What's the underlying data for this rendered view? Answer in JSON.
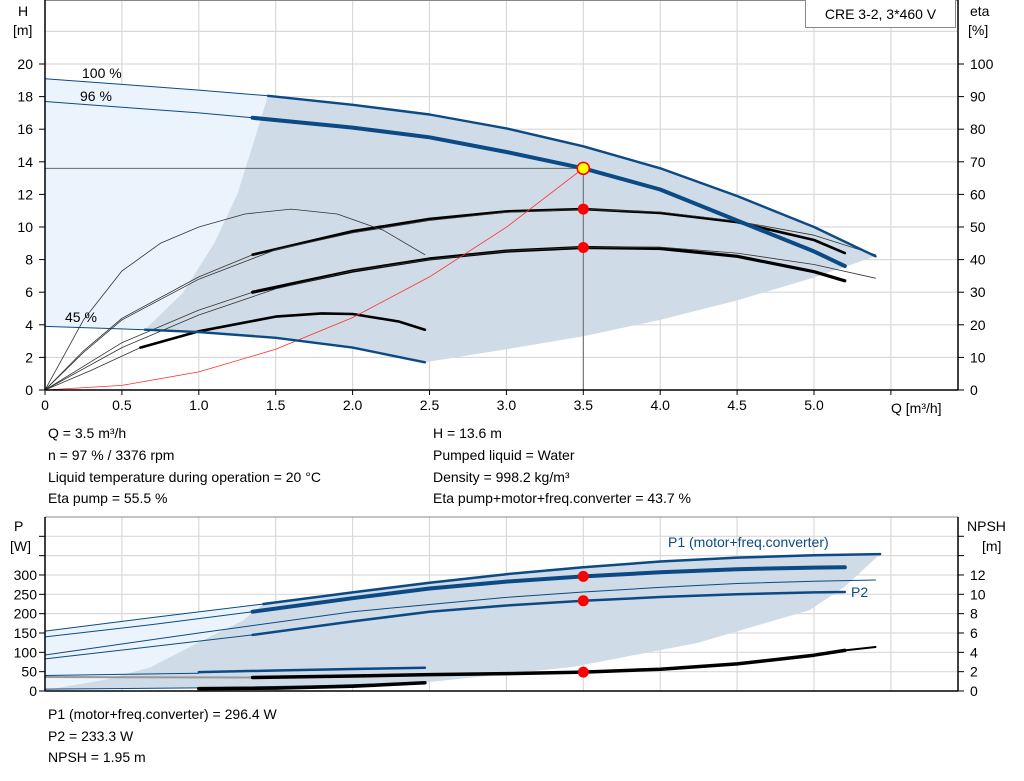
{
  "chart_data": [
    {
      "type": "line",
      "title": "CRE 3-2, 3*460 V",
      "xlabel": "Q [m³/h]",
      "ylabel_left": {
        "name": "H",
        "unit": "[m]"
      },
      "ylabel_right": {
        "name": "eta",
        "unit": "[%]"
      },
      "xlim": [
        0,
        5.5
      ],
      "ylim_left": [
        0,
        22
      ],
      "ylim_right": [
        0,
        110
      ],
      "x_ticks": [
        "0",
        "0.5",
        "1.0",
        "1.5",
        "2.0",
        "2.5",
        "3.0",
        "3.5",
        "4.0",
        "4.5",
        "5.0"
      ],
      "y_ticks_left": [
        "0",
        "2",
        "4",
        "6",
        "8",
        "10",
        "12",
        "14",
        "16",
        "18",
        "20"
      ],
      "y_ticks_right": [
        "0",
        "10",
        "20",
        "30",
        "40",
        "50",
        "60",
        "70",
        "80",
        "90",
        "100"
      ],
      "grid": true,
      "colors": {
        "head": "#0b4a85",
        "eta": "#000000",
        "system": "#ff3030",
        "region_light": "#ebf4fd",
        "region_dark": "#cfdbe6",
        "point": "#ff0000",
        "duty_point": "#ffff00"
      },
      "head_curves": [
        {
          "label": "100 %",
          "thin": [
            [
              0,
              19.1
            ],
            [
              0.5,
              18.75
            ],
            [
              1.0,
              18.4
            ],
            [
              1.45,
              18.05
            ]
          ],
          "thick": [
            [
              1.45,
              18.05
            ],
            [
              2.0,
              17.5
            ],
            [
              2.5,
              16.9
            ],
            [
              3.0,
              16.05
            ],
            [
              3.5,
              14.95
            ],
            [
              4.0,
              13.6
            ],
            [
              4.5,
              11.9
            ],
            [
              5.0,
              10.0
            ],
            [
              5.4,
              8.2
            ]
          ]
        },
        {
          "label": "96 %",
          "thin": [
            [
              0,
              17.7
            ],
            [
              0.5,
              17.35
            ],
            [
              1.0,
              17.0
            ],
            [
              1.35,
              16.7
            ]
          ],
          "thick": [
            [
              1.35,
              16.7
            ],
            [
              2.0,
              16.1
            ],
            [
              2.5,
              15.5
            ],
            [
              3.0,
              14.6
            ],
            [
              3.5,
              13.6
            ],
            [
              4.0,
              12.3
            ],
            [
              4.5,
              10.4
            ],
            [
              5.0,
              8.5
            ],
            [
              5.2,
              7.6
            ]
          ]
        },
        {
          "label": "45 %",
          "thin": [
            [
              0,
              3.9
            ],
            [
              0.65,
              3.7
            ]
          ],
          "thick": [
            [
              0.65,
              3.7
            ],
            [
              1.0,
              3.55
            ],
            [
              1.5,
              3.2
            ],
            [
              2.0,
              2.6
            ],
            [
              2.47,
              1.7
            ]
          ]
        }
      ],
      "eta_curves": [
        {
          "thin": [
            [
              0,
              0
            ],
            [
              0.25,
              12
            ],
            [
              0.5,
              22
            ],
            [
              1.0,
              34.7
            ],
            [
              1.35,
              41.5
            ]
          ],
          "thick": [
            [
              1.35,
              41.5
            ],
            [
              2.0,
              48.7
            ],
            [
              2.5,
              52.5
            ],
            [
              3.0,
              54.8
            ],
            [
              3.5,
              55.5
            ],
            [
              4.0,
              54.3
            ],
            [
              4.5,
              51.5
            ],
            [
              5.0,
              46
            ],
            [
              5.2,
              42
            ]
          ]
        },
        {
          "thin": [
            [
              0,
              0
            ],
            [
              0.25,
              11.5
            ],
            [
              0.5,
              21.5
            ],
            [
              1.0,
              34
            ],
            [
              1.5,
              43
            ],
            [
              2.0,
              48.2
            ],
            [
              2.5,
              52
            ],
            [
              3.0,
              54.5
            ],
            [
              3.5,
              55.4
            ],
            [
              4.0,
              54.6
            ],
            [
              4.5,
              51.8
            ],
            [
              5.0,
              47.5
            ],
            [
              5.4,
              41.5
            ]
          ],
          "thick": []
        },
        {
          "thin": [
            [
              0,
              0
            ],
            [
              0.5,
              14.5
            ],
            [
              1.0,
              24.5
            ],
            [
              1.35,
              30
            ]
          ],
          "thick": [
            [
              1.35,
              30
            ],
            [
              2.0,
              36.5
            ],
            [
              2.5,
              40.2
            ],
            [
              3.0,
              42.6
            ],
            [
              3.5,
              43.7
            ],
            [
              4.0,
              43.4
            ],
            [
              4.5,
              41
            ],
            [
              5.0,
              36.3
            ],
            [
              5.2,
              33.5
            ]
          ]
        },
        {
          "thin": [
            [
              0,
              0
            ],
            [
              0.5,
              13
            ],
            [
              1.0,
              23
            ],
            [
              1.5,
              31
            ],
            [
              2.0,
              36.5
            ],
            [
              2.5,
              40
            ],
            [
              3.0,
              42.6
            ],
            [
              3.5,
              43.8
            ],
            [
              4.0,
              43.8
            ],
            [
              4.5,
              42
            ],
            [
              5.0,
              38.5
            ],
            [
              5.4,
              34.3
            ]
          ],
          "thick": []
        },
        {
          "thin": [
            [
              0,
              0
            ],
            [
              0.3,
              6
            ],
            [
              0.62,
              13
            ]
          ],
          "thick": [
            [
              0.62,
              13
            ],
            [
              1.0,
              18
            ],
            [
              1.5,
              22.5
            ],
            [
              1.8,
              23.5
            ],
            [
              2.0,
              23.3
            ],
            [
              2.3,
              21
            ],
            [
              2.47,
              18.5
            ]
          ]
        },
        {
          "thin": [
            [
              0,
              0
            ],
            [
              0.25,
              21.5
            ],
            [
              0.5,
              36.5
            ],
            [
              0.75,
              45
            ],
            [
              1.0,
              50
            ],
            [
              1.3,
              54
            ],
            [
              1.6,
              55.5
            ],
            [
              1.9,
              54
            ],
            [
              2.2,
              49
            ],
            [
              2.47,
              41.5
            ]
          ],
          "thick": []
        }
      ],
      "system_curve": [
        [
          0,
          0
        ],
        [
          0.5,
          0.28
        ],
        [
          1.0,
          1.11
        ],
        [
          1.5,
          2.5
        ],
        [
          2.0,
          4.44
        ],
        [
          2.5,
          6.94
        ],
        [
          3.0,
          9.99
        ],
        [
          3.5,
          13.6
        ]
      ],
      "operating_region": {
        "left_boundary": [
          [
            0.65,
            3.7
          ],
          [
            0.9,
            6
          ],
          [
            1.1,
            9
          ],
          [
            1.25,
            12
          ],
          [
            1.35,
            15
          ],
          [
            1.45,
            18.05
          ]
        ],
        "lower_boundary": [
          [
            5.4,
            8.2
          ],
          [
            5.0,
            6.9
          ],
          [
            4.5,
            5.5
          ],
          [
            4.0,
            4.3
          ],
          [
            3.5,
            3.3
          ],
          [
            3.0,
            2.5
          ],
          [
            2.47,
            1.7
          ]
        ]
      },
      "duty_point": {
        "Q": 3.5,
        "H": 13.6
      },
      "eta_points": [
        55.5,
        43.7
      ]
    },
    {
      "type": "line",
      "ylabel_left": {
        "name": "P",
        "unit": "[W]"
      },
      "ylabel_right": {
        "name": "NPSH",
        "unit": "[m]"
      },
      "xlim": [
        0,
        5.5
      ],
      "ylim_left": [
        0,
        450
      ],
      "ylim_right": [
        0,
        18
      ],
      "y_ticks_left": [
        "0",
        "50",
        "100",
        "150",
        "200",
        "250",
        "300"
      ],
      "y_ticks_right": [
        "0",
        "2",
        "4",
        "6",
        "8",
        "10",
        "12"
      ],
      "grid": true,
      "series_labels": {
        "p1": "P1 (motor+freq.converter)",
        "p2": "P2"
      },
      "power_curves": [
        {
          "thin": [
            [
              0,
              155
            ],
            [
              0.7,
              190
            ],
            [
              1.42,
              225
            ]
          ],
          "thick": [
            [
              1.42,
              225
            ],
            [
              2.0,
              255
            ],
            [
              2.5,
              280
            ],
            [
              3.0,
              302
            ],
            [
              3.5,
              320
            ],
            [
              4.0,
              335
            ],
            [
              4.5,
              345
            ],
            [
              5.0,
              351
            ],
            [
              5.43,
              354
            ]
          ],
          "weight": 2.5
        },
        {
          "thin": [
            [
              0,
              140
            ],
            [
              0.7,
              172
            ],
            [
              1.35,
              205
            ]
          ],
          "thick": [
            [
              1.35,
              205
            ],
            [
              2.0,
              240
            ],
            [
              2.5,
              265
            ],
            [
              3.0,
              283
            ],
            [
              3.5,
              296.4
            ],
            [
              4.0,
              307
            ],
            [
              4.5,
              315
            ],
            [
              5.0,
              319
            ],
            [
              5.2,
              320
            ]
          ],
          "weight": 4
        },
        {
          "thin": [
            [
              0,
              93
            ],
            [
              1.0,
              150
            ],
            [
              2.0,
              205
            ],
            [
              3.0,
              242
            ],
            [
              3.5,
              256
            ],
            [
              4.0,
              268
            ],
            [
              4.5,
              278
            ],
            [
              5.0,
              284
            ],
            [
              5.4,
              287
            ]
          ],
          "thick": [],
          "weight": 1
        },
        {
          "thin": [
            [
              0,
              83
            ],
            [
              0.7,
              115
            ],
            [
              1.35,
              145
            ]
          ],
          "thick": [
            [
              1.35,
              145
            ],
            [
              2.0,
              180
            ],
            [
              2.5,
              205
            ],
            [
              3.0,
              221
            ],
            [
              3.5,
              233.3
            ],
            [
              4.0,
              243
            ],
            [
              4.5,
              250
            ],
            [
              5.0,
              255
            ],
            [
              5.2,
              256
            ]
          ],
          "weight": 2.5
        },
        {
          "thin": [
            [
              0,
              40
            ],
            [
              1.0,
              46
            ]
          ],
          "thick": [
            [
              1.0,
              49
            ],
            [
              1.5,
              53
            ],
            [
              2.0,
              57
            ],
            [
              2.47,
              60
            ]
          ],
          "weight": 2.5
        },
        {
          "thin": [
            [
              0,
              5
            ],
            [
              1.0,
              8
            ],
            [
              1.8,
              14
            ],
            [
              2.47,
              22
            ]
          ],
          "thick": [],
          "weight": 1
        }
      ],
      "npsh_curves": [
        {
          "thin": [
            [
              0,
              1.45
            ],
            [
              1.35,
              1.4
            ]
          ],
          "thick": [
            [
              1.35,
              1.4
            ],
            [
              2.0,
              1.55
            ],
            [
              2.5,
              1.7
            ],
            [
              3.0,
              1.8
            ],
            [
              3.5,
              1.95
            ],
            [
              4.0,
              2.25
            ],
            [
              4.5,
              2.8
            ],
            [
              5.0,
              3.7
            ],
            [
              5.2,
              4.2
            ]
          ],
          "tail": [
            [
              5.2,
              4.2
            ],
            [
              5.4,
              4.55
            ]
          ]
        },
        {
          "thin": [],
          "thick": [
            [
              1.0,
              0.25
            ],
            [
              1.5,
              0.3
            ],
            [
              2.0,
              0.5
            ],
            [
              2.47,
              0.85
            ]
          ],
          "tail": []
        }
      ],
      "operating_region": {
        "light_top": [
          [
            0,
            155
          ],
          [
            0.7,
            190
          ],
          [
            1.42,
            225
          ]
        ],
        "left_boundary": [
          [
            1.42,
            225
          ],
          [
            1.29,
            183
          ],
          [
            0.99,
            124
          ],
          [
            0.69,
            62
          ],
          [
            0.4,
            30
          ],
          [
            0.05,
            6
          ]
        ],
        "right_boundary": [
          [
            5.43,
            354
          ],
          [
            5.2,
            270
          ],
          [
            4.97,
            209
          ],
          [
            4.24,
            124
          ],
          [
            3.43,
            62
          ],
          [
            2.47,
            22
          ]
        ],
        "bottom": [
          [
            2.47,
            22
          ],
          [
            1.8,
            14
          ],
          [
            1.0,
            8
          ],
          [
            0.05,
            6
          ]
        ]
      },
      "points": {
        "P1": 296.4,
        "P2": 233.3,
        "NPSH": 1.95
      }
    }
  ],
  "readouts_top": {
    "q": "Q = 3.5 m³/h",
    "n": "n = 97 % / 3376 rpm",
    "temp": "Liquid temperature during operation = 20 °C",
    "eta_pump": "Eta pump = 55.5 %",
    "h": "H = 13.6 m",
    "liquid": "Pumped liquid = Water",
    "density": "Density = 998.2 kg/m³",
    "eta_total": "Eta pump+motor+freq.converter = 43.7 %"
  },
  "readouts_bottom": {
    "p1": "P1 (motor+freq.converter) = 296.4 W",
    "p2": "P2 = 233.3 W",
    "npsh": "NPSH = 1.95 m"
  }
}
